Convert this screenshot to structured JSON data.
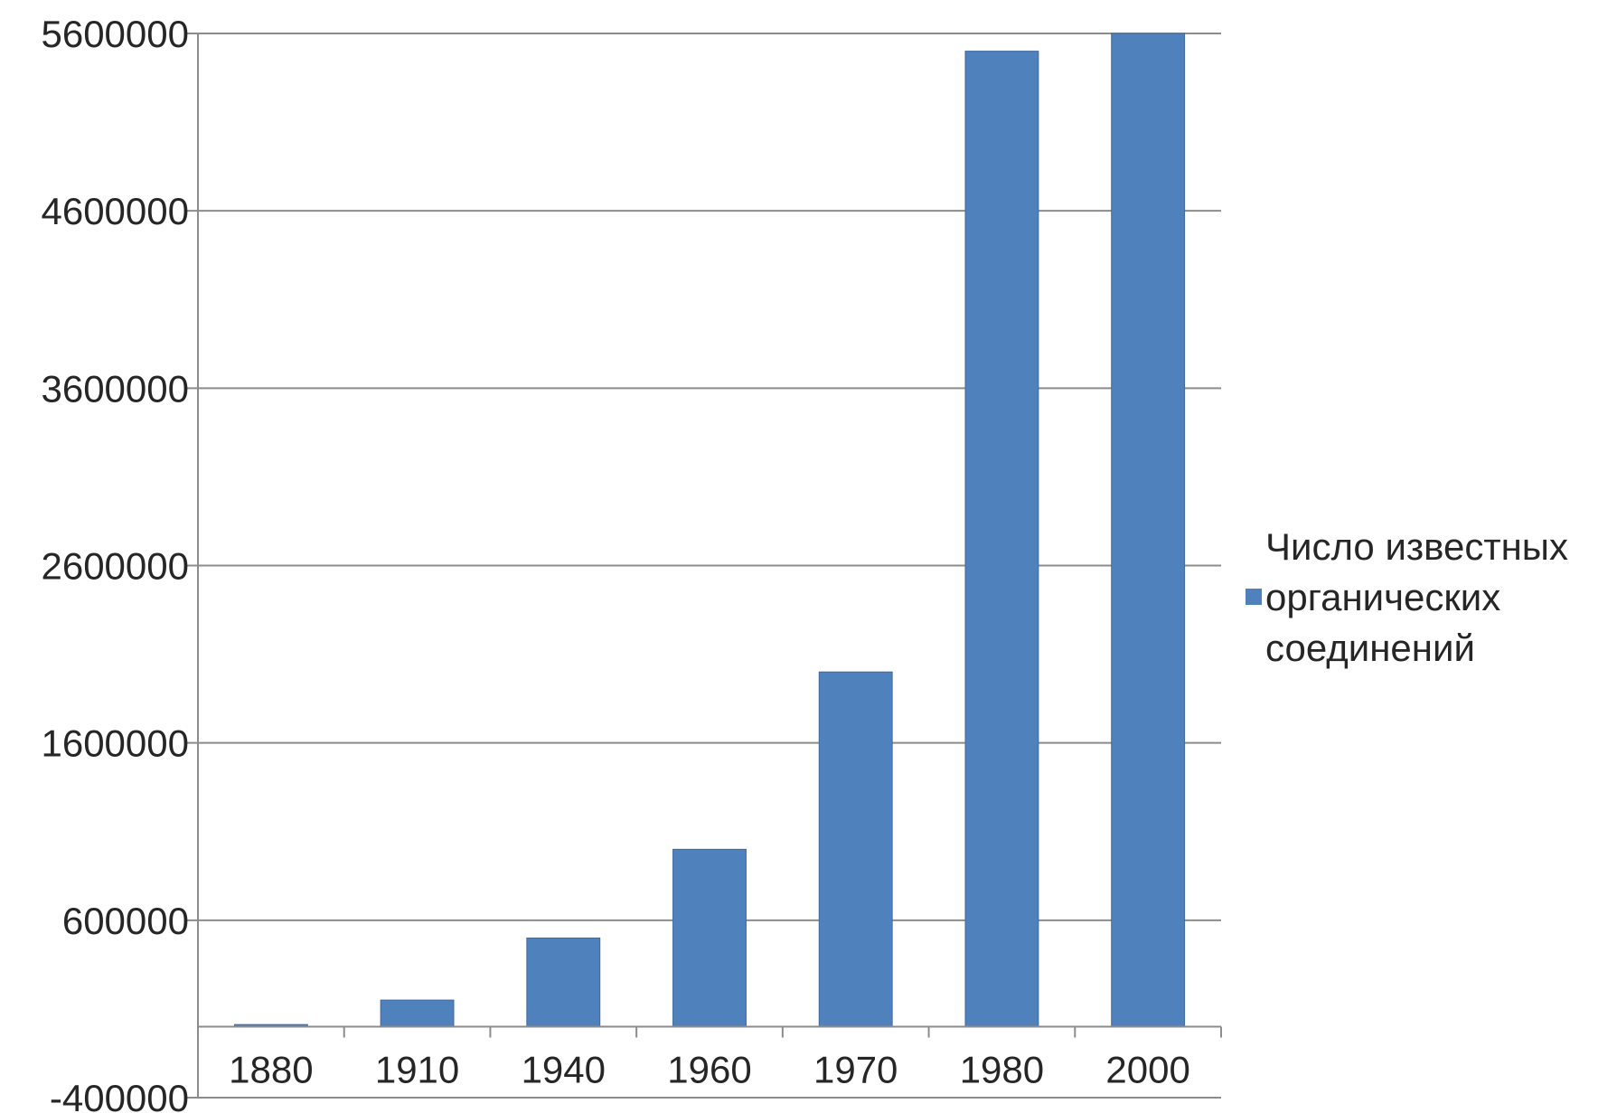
{
  "chart_data": {
    "type": "bar",
    "categories": [
      "1880",
      "1910",
      "1940",
      "1960",
      "1970",
      "1980",
      "2000"
    ],
    "series": [
      {
        "name": "Число известных органических соединений",
        "values": [
          12000,
          150000,
          500000,
          1000000,
          2000000,
          5500000,
          5600000
        ],
        "color": "#4f81bd"
      }
    ],
    "ylim": [
      -400000,
      5600000
    ],
    "yticks": [
      -400000,
      600000,
      1600000,
      2600000,
      3600000,
      4600000,
      5600000
    ],
    "ytick_labels": [
      "-400000",
      "600000",
      "1600000",
      "2600000",
      "3600000",
      "4600000",
      "5600000"
    ],
    "grid": true,
    "legend_position": "right",
    "legend_lines": [
      "Число известных",
      "органических",
      "соединений"
    ],
    "title": "",
    "xlabel": "",
    "ylabel": ""
  }
}
